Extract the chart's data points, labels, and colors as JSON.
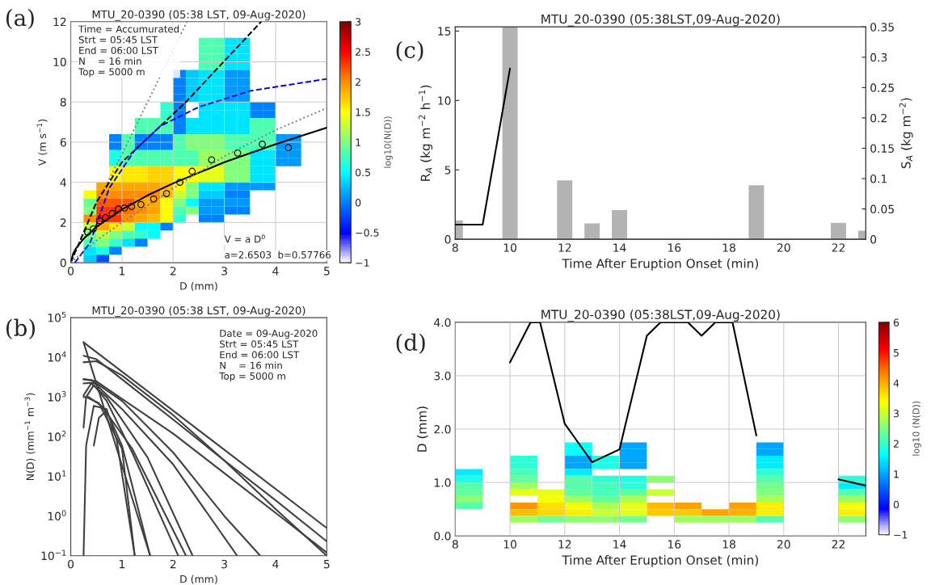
{
  "chart_data": [
    {
      "type": "heatmap",
      "title": "MTU_20-0390 (05:38 LST, 09-Aug-2020)",
      "xlabel": "D (mm)",
      "ylabel": "V (m s$^{−1}$)",
      "clabel": "log10(N(D))",
      "x": [
        0.125,
        0.375,
        0.625,
        0.875,
        1.125,
        1.375,
        1.625,
        1.875,
        2.125,
        2.375,
        2.625,
        2.875,
        3.125,
        3.375,
        3.625,
        3.875,
        4.125,
        4.375,
        4.625,
        4.875
      ],
      "y": [
        11.0,
        10.6,
        10.2,
        9.8,
        9.4,
        9.0,
        8.6,
        8.2,
        7.8,
        7.4,
        7.0,
        6.6,
        6.2,
        5.8,
        5.4,
        5.0,
        4.6,
        4.2,
        3.8,
        3.4,
        3.0,
        2.6,
        2.2,
        1.8,
        1.4,
        1.0,
        0.6,
        0.2
      ],
      "cells": [
        [
          null,
          null,
          null,
          null,
          null,
          null,
          null,
          null,
          null,
          null,
          0.8,
          0.8,
          0.4,
          0.4,
          null,
          null,
          null,
          null,
          null,
          null
        ],
        [
          null,
          null,
          null,
          null,
          null,
          null,
          null,
          null,
          null,
          null,
          0.8,
          0.8,
          0.4,
          0.4,
          null,
          null,
          null,
          null,
          null,
          null
        ],
        [
          null,
          null,
          null,
          null,
          null,
          null,
          null,
          null,
          null,
          null,
          0.8,
          0.8,
          0.4,
          0.4,
          null,
          null,
          null,
          null,
          null,
          null
        ],
        [
          null,
          null,
          null,
          null,
          null,
          null,
          null,
          null,
          null,
          null,
          0.8,
          0.8,
          0.4,
          0.4,
          null,
          null,
          null,
          null,
          null,
          null
        ],
        [
          null,
          null,
          null,
          null,
          null,
          null,
          null,
          null,
          0.0,
          0.3,
          0.4,
          0.4,
          0.1,
          0.1,
          null,
          null,
          null,
          null,
          null,
          null
        ],
        [
          null,
          null,
          null,
          null,
          null,
          null,
          null,
          null,
          0.0,
          0.3,
          0.4,
          0.4,
          0.1,
          0.1,
          null,
          null,
          null,
          null,
          null,
          null
        ],
        [
          null,
          null,
          null,
          null,
          null,
          null,
          null,
          null,
          0.0,
          0.3,
          0.4,
          0.4,
          0.1,
          0.1,
          null,
          null,
          null,
          null,
          null,
          null
        ],
        [
          null,
          null,
          null,
          null,
          null,
          null,
          null,
          null,
          0.0,
          0.3,
          0.4,
          0.4,
          0.1,
          0.1,
          null,
          null,
          null,
          null,
          null,
          null
        ],
        [
          null,
          null,
          null,
          null,
          null,
          null,
          null,
          0.7,
          0.0,
          null,
          0.4,
          0.4,
          0.4,
          0.4,
          0.0,
          0.0,
          null,
          null,
          null,
          null
        ],
        [
          null,
          null,
          null,
          null,
          null,
          null,
          null,
          0.7,
          0.0,
          null,
          0.4,
          0.4,
          0.4,
          0.4,
          0.0,
          0.0,
          null,
          null,
          null,
          null
        ],
        [
          null,
          null,
          null,
          null,
          null,
          0.8,
          0.8,
          0.8,
          0.0,
          0.4,
          0.4,
          0.4,
          0.4,
          0.4,
          0.8,
          0.8,
          null,
          null,
          null,
          null
        ],
        [
          null,
          null,
          null,
          null,
          null,
          0.8,
          0.8,
          0.8,
          0.0,
          0.4,
          0.4,
          0.4,
          0.4,
          0.4,
          0.8,
          0.8,
          null,
          null,
          null,
          null
        ],
        [
          null,
          null,
          null,
          0.0,
          0.8,
          0.0,
          0.0,
          0.0,
          0.8,
          1.0,
          1.0,
          1.0,
          0.8,
          0.8,
          0.8,
          0.8,
          0.1,
          0.1,
          null,
          null
        ],
        [
          null,
          null,
          null,
          0.0,
          0.8,
          0.0,
          0.0,
          0.0,
          0.8,
          1.0,
          1.0,
          1.0,
          0.8,
          0.8,
          0.8,
          0.8,
          0.1,
          0.1,
          null,
          null
        ],
        [
          null,
          null,
          null,
          0.6,
          0.8,
          0.8,
          0.8,
          0.8,
          0.8,
          0.8,
          1.1,
          1.1,
          1.0,
          1.0,
          0.4,
          0.4,
          0.1,
          0.1,
          null,
          null
        ],
        [
          null,
          null,
          null,
          0.6,
          0.8,
          0.8,
          0.8,
          0.8,
          0.8,
          0.8,
          1.1,
          1.1,
          1.0,
          1.0,
          0.4,
          0.4,
          0.1,
          0.1,
          null,
          null
        ],
        [
          null,
          null,
          null,
          1.5,
          1.6,
          1.6,
          1.7,
          1.7,
          1.5,
          1.5,
          1.4,
          1.4,
          1.0,
          1.0,
          0.4,
          0.4,
          null,
          null,
          null,
          null
        ],
        [
          null,
          null,
          null,
          1.5,
          1.6,
          1.6,
          1.7,
          1.7,
          1.5,
          1.5,
          1.4,
          1.4,
          1.0,
          1.0,
          0.4,
          0.4,
          null,
          null,
          null,
          null
        ],
        [
          null,
          null,
          1.9,
          1.9,
          1.9,
          1.9,
          1.9,
          1.8,
          1.5,
          1.0,
          0.4,
          0.4,
          0.1,
          0.1,
          0.1,
          0.1,
          null,
          null,
          null,
          null
        ],
        [
          null,
          1.5,
          2.0,
          2.0,
          2.0,
          2.0,
          2.0,
          1.8,
          1.3,
          1.0,
          0.3,
          0.3,
          0.0,
          0.0,
          null,
          null,
          null,
          null,
          null,
          null
        ],
        [
          null,
          0.9,
          2.2,
          2.2,
          2.2,
          1.9,
          1.9,
          1.5,
          1.0,
          0.5,
          0.1,
          0.1,
          0.1,
          0.1,
          null,
          null,
          null,
          null,
          null,
          null
        ],
        [
          null,
          1.0,
          2.3,
          2.3,
          2.1,
          2.0,
          1.9,
          1.5,
          0.8,
          1.0,
          0.1,
          0.1,
          0.0,
          0.0,
          null,
          null,
          null,
          null,
          null,
          null
        ],
        [
          null,
          2.0,
          2.4,
          2.3,
          2.0,
          1.9,
          1.8,
          1.5,
          0.7,
          null,
          0.0,
          0.0,
          null,
          null,
          null,
          null,
          null,
          null,
          null,
          null
        ],
        [
          null,
          1.2,
          1.9,
          1.6,
          1.3,
          0.5,
          0.5,
          0.0,
          null,
          null,
          null,
          null,
          null,
          null,
          null,
          null,
          null,
          null,
          null,
          null
        ],
        [
          null,
          1.0,
          1.2,
          1.0,
          0.8,
          0.7,
          0.5,
          null,
          null,
          null,
          null,
          null,
          null,
          null,
          null,
          null,
          null,
          null,
          null,
          null
        ],
        [
          null,
          0.8,
          1.0,
          0.7,
          0.4,
          0.0,
          null,
          null,
          null,
          null,
          null,
          null,
          null,
          null,
          null,
          null,
          null,
          null,
          null,
          null
        ],
        [
          null,
          0.4,
          0.6,
          0.0,
          null,
          null,
          null,
          null,
          null,
          null,
          null,
          null,
          null,
          null,
          null,
          null,
          null,
          null,
          null,
          null
        ],
        [
          null,
          0.3,
          -0.2,
          null,
          null,
          null,
          null,
          null,
          null,
          null,
          null,
          null,
          null,
          null,
          null,
          null,
          null,
          null,
          null,
          null
        ]
      ],
      "xlim": [
        0,
        5
      ],
      "xticks": [
        0,
        1,
        2,
        3,
        4,
        5
      ],
      "ylim": [
        0,
        12
      ],
      "yticks": [
        0,
        2,
        4,
        6,
        8,
        10,
        12
      ],
      "grid": true,
      "clim": [
        -1,
        3
      ],
      "cticks": [
        -1,
        -0.5,
        0,
        0.5,
        1,
        1.5,
        2,
        2.5,
        3
      ],
      "series": [
        {
          "type": "line",
          "color": "#808080",
          "line_style": "dotted",
          "x": [
            0,
            0.5,
            1,
            2.27
          ],
          "values": [
            0,
            2.9,
            5.4,
            12
          ]
        },
        {
          "type": "line",
          "color": "#000000",
          "line_style": "dashed",
          "x": [
            0,
            0.5,
            1,
            2.25,
            3.72
          ],
          "values": [
            0,
            3.0,
            5.0,
            8.0,
            12
          ]
        },
        {
          "type": "line",
          "color": "#0000ff",
          "line_style": "dashed",
          "x": [
            0.08,
            0.38,
            0.75,
            1.25,
            1.75,
            2.5,
            3.5,
            5
          ],
          "values": [
            0,
            1.0,
            3.7,
            5.6,
            6.8,
            7.75,
            8.55,
            9.15
          ]
        },
        {
          "type": "line",
          "color": "#000000",
          "line_style": "solid",
          "x": [
            0,
            0.05,
            0.1,
            0.25,
            0.5,
            1,
            1.5,
            2,
            3,
            4,
            5
          ],
          "values": [
            0,
            0.47,
            0.7,
            1.19,
            1.78,
            2.65,
            3.35,
            3.95,
            5.0,
            5.9,
            6.72
          ]
        },
        {
          "type": "line",
          "color": "#808080",
          "line_style": "dotted",
          "x": [
            0,
            0.5,
            1,
            2,
            3,
            4,
            5
          ],
          "values": [
            0,
            1.1,
            2.0,
            3.7,
            5.3,
            6.6,
            7.7
          ]
        },
        {
          "type": "scatter",
          "color": "#000000",
          "marker": "circle",
          "x": [
            0.33,
            0.44,
            0.56,
            0.68,
            0.81,
            0.93,
            1.05,
            1.19,
            1.37,
            1.62,
            1.87,
            2.13,
            2.37,
            2.75,
            3.26,
            3.74,
            4.25
          ],
          "values": [
            1.52,
            1.68,
            2.1,
            2.25,
            2.45,
            2.67,
            2.72,
            2.8,
            2.9,
            3.17,
            3.44,
            4.0,
            4.55,
            5.12,
            5.46,
            5.9,
            5.73
          ]
        }
      ],
      "annotations": [
        "(a)",
        "Time = Accumurated\nStrt = 05:45 LST\nEnd = 06:00 LST\nN    = 16 min\nTop = 5000 m",
        "V = a D$^{b}$",
        "a=2.6503  b=0.57766"
      ]
    },
    {
      "type": "line",
      "title": "MTU_20-0390 (05:38 LST, 09-Aug-2020)",
      "xlabel": "D (mm)",
      "ylabel": "N(D) (mm$^{−1}$ m$^{−3}$)",
      "log": true,
      "xlim": [
        0,
        5
      ],
      "xticks": [
        0,
        1,
        2,
        3,
        4,
        5
      ],
      "ylim": [
        0.1,
        100000
      ],
      "yticks": [
        {
          "value": 0.1,
          "label": "10$^{−1}$"
        },
        {
          "value": 1,
          "label": "10$^{0}$"
        },
        {
          "value": 10,
          "label": "10$^{1}$"
        },
        {
          "value": 100,
          "label": "10$^{2}$"
        },
        {
          "value": 1000,
          "label": "10$^{3}$"
        },
        {
          "value": 10000,
          "label": "10$^{4}$"
        },
        {
          "value": 100000,
          "label": "10$^{5}$"
        }
      ],
      "series": [
        {
          "color": "#404040",
          "x": [
            0.25,
            5
          ],
          "values": [
            24000,
            0.5
          ]
        },
        {
          "color": "#404040",
          "x": [
            0.25,
            1.55
          ],
          "values": [
            24000,
            0.1
          ]
        },
        {
          "color": "#404040",
          "x": [
            0.25,
            0.5,
            1,
            2,
            3,
            4,
            5
          ],
          "values": [
            11000,
            9000,
            2800,
            270,
            25,
            2.5,
            0.23
          ]
        },
        {
          "color": "#404040",
          "x": [
            0.25,
            0.5,
            1,
            2,
            3,
            4,
            5
          ],
          "values": [
            7500,
            8000,
            3500,
            350,
            25,
            1.5,
            0.1
          ]
        },
        {
          "color": "#404040",
          "x": [
            0.25,
            0.5,
            1,
            2,
            3,
            4,
            5
          ],
          "values": [
            2800,
            2500,
            900,
            120,
            12,
            1.2,
            0.12
          ]
        },
        {
          "color": "#404040",
          "x": [
            0.25,
            0.4,
            1,
            2,
            3,
            3.7
          ],
          "values": [
            2800,
            2700,
            800,
            40,
            1,
            0.1
          ]
        },
        {
          "color": "#404040",
          "x": [
            0.25,
            0.45,
            1,
            2,
            3.25
          ],
          "values": [
            2200,
            2300,
            500,
            20,
            0.1
          ]
        },
        {
          "color": "#404040",
          "x": [
            0.25,
            0.4,
            0.7,
            1.5,
            2.38
          ],
          "values": [
            1100,
            2200,
            1000,
            30,
            0.1
          ]
        },
        {
          "color": "#404040",
          "x": [
            0.25,
            0.35,
            0.6,
            1.2,
            2.25
          ],
          "values": [
            1000,
            1000,
            600,
            50,
            0.1
          ]
        },
        {
          "color": "#404040",
          "x": [
            0.25,
            0.3,
            0.45,
            0.7,
            1.2,
            2.1
          ],
          "values": [
            170,
            1000,
            2000,
            800,
            40,
            0.1
          ]
        },
        {
          "color": "#404040",
          "x": [
            0.25,
            0.3,
            0.45,
            0.7,
            0.9,
            1.25
          ],
          "values": [
            0.1,
            60,
            600,
            500,
            80,
            0.1
          ]
        },
        {
          "color": "#404040",
          "x": [
            0.45,
            0.55,
            0.7,
            1.0,
            1.55
          ],
          "values": [
            60,
            300,
            450,
            60,
            0.1
          ]
        },
        {
          "color": "#404040",
          "x": [
            0.3,
            0.55,
            1,
            1.25
          ],
          "values": [
            1000,
            700,
            50,
            0.1
          ]
        }
      ],
      "annotations": [
        "(b)",
        "Date = 09-Aug-2020\nStrt = 05:45 LST\nEnd = 06:00 LST\nN    = 16 min\nTop = 5000 m"
      ]
    },
    {
      "type": "bar",
      "title": "MTU_20-0390 (05:38LST,09-Aug-2020)",
      "xlabel": "Time After Eruption Onset (min)",
      "ylabel": "R$_{A}$ (kg m$^{−2}$ h$^{−1}$)",
      "y2label": "S$_{A}$ (kg m$^{−2}$)",
      "x": [
        8,
        9,
        10,
        11,
        12,
        13,
        14,
        15,
        16,
        17,
        18,
        19,
        20,
        21,
        22,
        23
      ],
      "xlim": [
        8,
        23
      ],
      "xticks": [
        8,
        10,
        12,
        14,
        16,
        18,
        20,
        22
      ],
      "ylim": [
        0,
        15.3
      ],
      "yticks": [
        0,
        5,
        10,
        15
      ],
      "y2lim": [
        0,
        0.35
      ],
      "y2ticks": [
        0,
        0.05,
        0.1,
        0.15,
        0.2,
        0.25,
        0.3,
        0.35
      ],
      "series": [
        {
          "type": "bar",
          "axis": "y2",
          "color": "#b3b3b3",
          "values": [
            0.032,
            null,
            0.35,
            null,
            0.098,
            0.027,
            0.049,
            null,
            null,
            null,
            null,
            0.09,
            null,
            null,
            0.028,
            0.015
          ]
        },
        {
          "type": "line",
          "color": "#000000",
          "x": [
            8,
            9,
            10
          ],
          "values": [
            1.05,
            1.05,
            12.3
          ]
        }
      ],
      "annotations": [
        "(c)"
      ]
    },
    {
      "type": "heatmap",
      "title": "MTU_20-0390 (05:38LST,09-Aug-2020)",
      "xlabel": "Time After Eruption Onset (min)",
      "ylabel": "D (mm)",
      "clabel": "log10 (N(D))",
      "x": [
        8.5,
        9.5,
        10.5,
        11.5,
        12.5,
        13.5,
        14.5,
        15.5,
        16.5,
        17.5,
        18.5,
        19.5,
        20.5,
        21.5,
        22.5
      ],
      "y": [
        1.6875,
        1.5625,
        1.4375,
        1.3125,
        1.1875,
        1.0625,
        0.9375,
        0.8125,
        0.6875,
        0.5625,
        0.4375,
        0.3125
      ],
      "cells": [
        [
          null,
          null,
          null,
          null,
          1.7,
          null,
          1.0,
          null,
          null,
          null,
          null,
          1.0,
          null,
          null,
          null
        ],
        [
          null,
          null,
          null,
          null,
          1.7,
          null,
          1.0,
          null,
          null,
          null,
          null,
          1.0,
          null,
          null,
          null
        ],
        [
          null,
          null,
          1.9,
          null,
          1.0,
          1.8,
          1.0,
          null,
          null,
          null,
          null,
          1.5,
          null,
          null,
          null
        ],
        [
          null,
          null,
          1.9,
          null,
          1.0,
          1.8,
          1.0,
          null,
          null,
          null,
          null,
          1.5,
          null,
          null,
          null
        ],
        [
          1.5,
          null,
          2.1,
          null,
          1.5,
          null,
          null,
          null,
          null,
          null,
          null,
          1.9,
          null,
          null,
          null
        ],
        [
          1.8,
          null,
          2.3,
          null,
          2.2,
          1.9,
          1.8,
          2.6,
          null,
          null,
          null,
          2.2,
          null,
          null,
          1.9
        ],
        [
          2.2,
          null,
          2.7,
          null,
          2.2,
          2.1,
          1.9,
          null,
          null,
          null,
          null,
          2.4,
          null,
          null,
          1.5
        ],
        [
          2.3,
          null,
          3.2,
          3.2,
          2.3,
          2.1,
          2.3,
          3.0,
          null,
          null,
          null,
          2.5,
          null,
          null,
          2.2
        ],
        [
          2.6,
          null,
          null,
          3.3,
          2.7,
          2.3,
          2.8,
          null,
          null,
          null,
          null,
          2.8,
          null,
          null,
          2.7
        ],
        [
          2.2,
          null,
          4.2,
          3.6,
          3.3,
          2.8,
          3.2,
          3.9,
          4.1,
          null,
          4.1,
          3.5,
          null,
          null,
          3.3
        ],
        [
          null,
          null,
          3.9,
          3.7,
          3.5,
          3.0,
          3.2,
          3.8,
          3.8,
          4.1,
          4.0,
          3.5,
          null,
          null,
          3.5
        ],
        [
          null,
          null,
          2.7,
          2.4,
          2.6,
          2.6,
          2.4,
          null,
          2.7,
          2.7,
          2.7,
          2.2,
          null,
          null,
          2.6
        ]
      ],
      "xlim": [
        8,
        23
      ],
      "xticks": [
        8,
        10,
        12,
        14,
        16,
        18,
        20,
        22
      ],
      "ylim": [
        0,
        4
      ],
      "yticks": [
        {
          "value": 0,
          "label": "0.0"
        },
        {
          "value": 1,
          "label": "1.0"
        },
        {
          "value": 2,
          "label": "2.0"
        },
        {
          "value": 3,
          "label": "3.0"
        },
        {
          "value": 4,
          "label": "4.0"
        }
      ],
      "grid": true,
      "clim": [
        -1,
        6
      ],
      "cticks": [
        -1,
        0,
        1,
        2,
        3,
        4,
        5,
        6
      ],
      "series": [
        {
          "type": "line",
          "color": "#000000",
          "x": [
            10,
            10.75,
            11.1,
            12,
            13,
            14,
            15,
            15.5,
            16.5,
            17,
            17.5,
            18.13,
            19,
            20,
            22,
            23
          ],
          "values": [
            3.25,
            4,
            4,
            2.1,
            1.38,
            1.62,
            3.75,
            4,
            4,
            3.75,
            4,
            4,
            1.88,
            null,
            1.06,
            0.94
          ]
        }
      ],
      "annotations": [
        "(d)"
      ]
    }
  ]
}
